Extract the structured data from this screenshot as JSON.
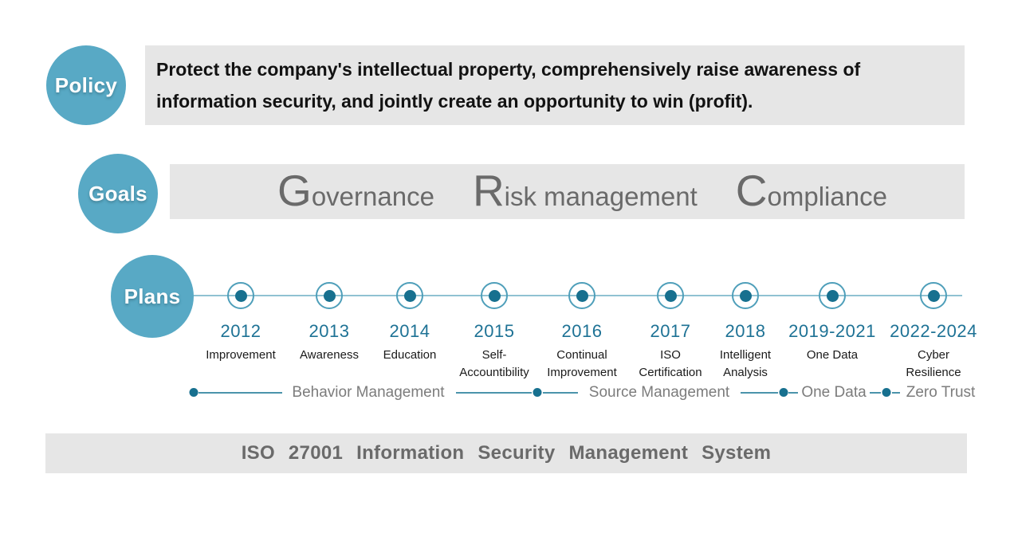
{
  "colors": {
    "accent_teal": "#58A9C5",
    "dark_teal_dot": "#17708F",
    "ring_border": "#4F9FBA",
    "timeline_line": "#90C2D2",
    "phase_line": "#4B93AB",
    "year_text": "#1E7295",
    "bar_bg": "#E6E6E6",
    "gray_text": "#6A6A6A"
  },
  "policy": {
    "badge": "Policy",
    "lines": [
      "Protect the company's intellectual property, comprehensively raise awareness of",
      "information security, and jointly create an opportunity to win (profit)."
    ]
  },
  "goals": {
    "badge": "Goals",
    "items": [
      {
        "initial": "G",
        "rest": "overnance"
      },
      {
        "initial": "R",
        "rest": "isk management"
      },
      {
        "initial": "C",
        "rest": "ompliance"
      }
    ]
  },
  "plans": {
    "badge": "Plans",
    "milestones": [
      {
        "year": "2012",
        "label": "Improvement"
      },
      {
        "year": "2013",
        "label": "Awareness"
      },
      {
        "year": "2014",
        "label": "Education"
      },
      {
        "year": "2015",
        "label": "Self-\nAccountibility"
      },
      {
        "year": "2016",
        "label": "Continual\nImprovement"
      },
      {
        "year": "2017",
        "label": "ISO\nCertification"
      },
      {
        "year": "2018",
        "label": "Intelligent\nAnalysis"
      },
      {
        "year": "2019-2021",
        "label": "One Data"
      },
      {
        "year": "2022-2024",
        "label": "Cyber\nResilience"
      }
    ],
    "phases": [
      {
        "label": "Behavior Management"
      },
      {
        "label": "Source Management"
      },
      {
        "label": "One Data"
      },
      {
        "label": "Zero Trust"
      }
    ]
  },
  "footer": {
    "text": "ISO 27001 Information Security Management System"
  }
}
